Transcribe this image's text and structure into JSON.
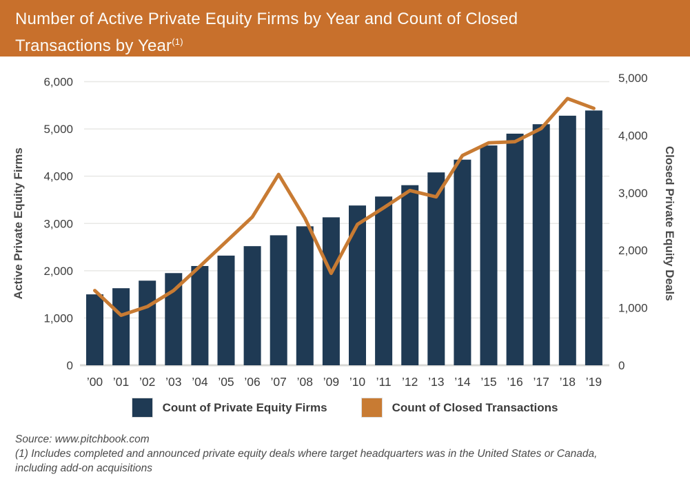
{
  "title": {
    "line1": "Number of Active Private Equity Firms by Year and Count of Closed",
    "line2": "Transactions by Year",
    "superscript": "(1)"
  },
  "colors": {
    "header_bg": "#C8702C",
    "bar": "#1F3A54",
    "line": "#C87B33",
    "grid": "#E8E8E5",
    "axis_line": "#D7D7D4",
    "tick_text": "#3D3D3D",
    "axis_title_text": "#4A4A4A"
  },
  "chart_data": {
    "type": "bar",
    "subtype": "bar-and-line-dual-axis",
    "title": "Number of Active Private Equity Firms by Year and Count of Closed Transactions by Year(1)",
    "categories": [
      "’00",
      "’01",
      "’02",
      "’03",
      "’04",
      "’05",
      "’06",
      "’07",
      "’08",
      "’09",
      "’10",
      "’11",
      "’12",
      "’13",
      "’14",
      "’15",
      "’16",
      "’17",
      "’18",
      "’19"
    ],
    "series": [
      {
        "name": "Count of Private Equity Firms",
        "type": "bar",
        "axis": "left",
        "color": "#1F3A54",
        "values": [
          1500,
          1630,
          1790,
          1950,
          2100,
          2320,
          2520,
          2750,
          2940,
          3130,
          3380,
          3570,
          3810,
          4080,
          4350,
          4650,
          4900,
          5100,
          5280,
          5390
        ]
      },
      {
        "name": "Count of Closed Transactions",
        "type": "line",
        "axis": "right",
        "color": "#C87B33",
        "values": [
          1300,
          870,
          1020,
          1300,
          1720,
          2150,
          2580,
          3320,
          2560,
          1600,
          2450,
          2740,
          3040,
          2930,
          3650,
          3870,
          3890,
          4120,
          4640,
          4470
        ]
      }
    ],
    "left_axis": {
      "label": "Active Private Equity Firms",
      "min": 0,
      "max": 6000,
      "step": 1000,
      "tick_labels": [
        "0",
        "1,000",
        "2,000",
        "3,000",
        "4,000",
        "5,000",
        "6,000"
      ]
    },
    "right_axis": {
      "label": "Closed Private Equity Deals",
      "min": 0,
      "max": 5000,
      "step": 1000,
      "tick_labels": [
        "0",
        "1,000",
        "2,000",
        "3,000",
        "4,000",
        "5,000"
      ]
    },
    "grid": true,
    "legend_position": "bottom"
  },
  "legend": {
    "items": [
      {
        "label": "Count of Private Equity Firms",
        "color": "#1F3A54"
      },
      {
        "label": "Count of Closed Transactions",
        "color": "#C87B33"
      }
    ]
  },
  "footer": {
    "source": "Source: www.pitchbook.com",
    "footnote_line1": "(1) Includes completed and announced private equity deals where target headquarters was in the United States or Canada,",
    "footnote_line2": "including add-on acquisitions"
  }
}
